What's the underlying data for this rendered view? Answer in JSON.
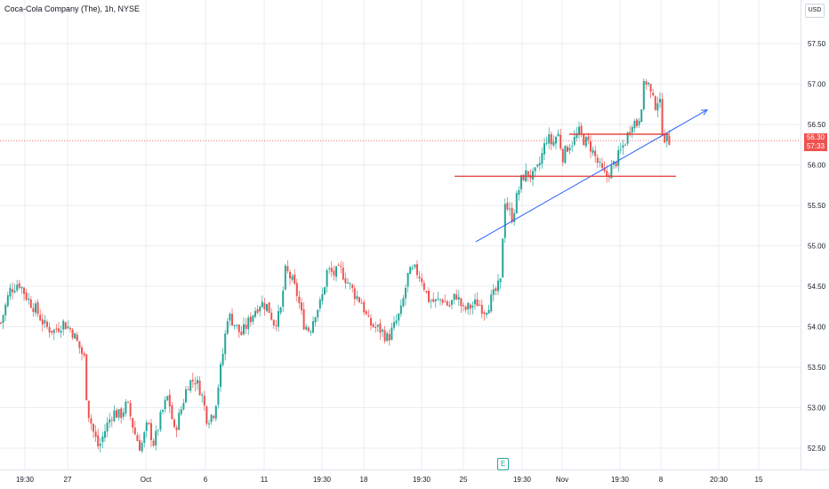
{
  "header": {
    "title": "Coca-Cola Company (The), 1h, NYSE",
    "currency_button": "USD"
  },
  "last_price": {
    "value": "56.30",
    "countdown": "57:33"
  },
  "earnings_marker": {
    "label": "E"
  },
  "colors": {
    "up": "#26a69a",
    "down": "#ef5350",
    "grid": "#e9eef3",
    "axis_text": "#131722",
    "trendline": "#2962ff",
    "level_line": "#e53935"
  },
  "chart_data": {
    "type": "candlestick",
    "title": "Coca-Cola Company (The), 1h, NYSE",
    "ylim": [
      52.3,
      57.85
    ],
    "y_ticks": [
      "57.50",
      "57.00",
      "56.50",
      "56.00",
      "55.50",
      "55.00",
      "54.50",
      "54.00",
      "53.50",
      "53.00",
      "52.50"
    ],
    "x_ticks": [
      "19:30",
      "27",
      "Oct",
      "6",
      "11",
      "19:30",
      "18",
      "19:30",
      "25",
      "19:30",
      "Nov",
      "19:30",
      "8",
      "20:30",
      "15"
    ],
    "grid": true,
    "close_path": [
      {
        "x": 0,
        "y": 54.05
      },
      {
        "x": 10,
        "y": 54.45
      },
      {
        "x": 20,
        "y": 54.55
      },
      {
        "x": 30,
        "y": 54.35
      },
      {
        "x": 40,
        "y": 54.2
      },
      {
        "x": 50,
        "y": 54.0
      },
      {
        "x": 60,
        "y": 53.95
      },
      {
        "x": 70,
        "y": 54.05
      },
      {
        "x": 80,
        "y": 53.95
      },
      {
        "x": 88,
        "y": 53.75
      },
      {
        "x": 94,
        "y": 53.6
      },
      {
        "x": 97,
        "y": 53.0
      },
      {
        "x": 104,
        "y": 52.7
      },
      {
        "x": 110,
        "y": 52.5
      },
      {
        "x": 118,
        "y": 52.75
      },
      {
        "x": 126,
        "y": 52.95
      },
      {
        "x": 134,
        "y": 52.9
      },
      {
        "x": 142,
        "y": 53.05
      },
      {
        "x": 150,
        "y": 52.7
      },
      {
        "x": 157,
        "y": 52.5
      },
      {
        "x": 165,
        "y": 52.8
      },
      {
        "x": 172,
        "y": 52.55
      },
      {
        "x": 180,
        "y": 52.9
      },
      {
        "x": 188,
        "y": 53.15
      },
      {
        "x": 195,
        "y": 52.7
      },
      {
        "x": 202,
        "y": 52.95
      },
      {
        "x": 210,
        "y": 53.3
      },
      {
        "x": 218,
        "y": 53.35
      },
      {
        "x": 225,
        "y": 53.2
      },
      {
        "x": 232,
        "y": 52.85
      },
      {
        "x": 240,
        "y": 52.95
      },
      {
        "x": 246,
        "y": 53.4
      },
      {
        "x": 250,
        "y": 53.7
      },
      {
        "x": 255,
        "y": 54.15
      },
      {
        "x": 262,
        "y": 54.05
      },
      {
        "x": 270,
        "y": 53.9
      },
      {
        "x": 278,
        "y": 54.05
      },
      {
        "x": 285,
        "y": 54.2
      },
      {
        "x": 292,
        "y": 54.3
      },
      {
        "x": 300,
        "y": 54.25
      },
      {
        "x": 307,
        "y": 54.05
      },
      {
        "x": 314,
        "y": 54.15
      },
      {
        "x": 320,
        "y": 54.7
      },
      {
        "x": 326,
        "y": 54.6
      },
      {
        "x": 333,
        "y": 54.4
      },
      {
        "x": 340,
        "y": 54.05
      },
      {
        "x": 347,
        "y": 53.95
      },
      {
        "x": 354,
        "y": 54.2
      },
      {
        "x": 360,
        "y": 54.3
      },
      {
        "x": 367,
        "y": 54.7
      },
      {
        "x": 374,
        "y": 54.65
      },
      {
        "x": 382,
        "y": 54.7
      },
      {
        "x": 390,
        "y": 54.55
      },
      {
        "x": 398,
        "y": 54.4
      },
      {
        "x": 406,
        "y": 54.3
      },
      {
        "x": 413,
        "y": 54.05
      },
      {
        "x": 420,
        "y": 54.0
      },
      {
        "x": 428,
        "y": 53.95
      },
      {
        "x": 435,
        "y": 53.85
      },
      {
        "x": 442,
        "y": 54.0
      },
      {
        "x": 450,
        "y": 54.2
      },
      {
        "x": 458,
        "y": 54.65
      },
      {
        "x": 466,
        "y": 54.7
      },
      {
        "x": 473,
        "y": 54.6
      },
      {
        "x": 480,
        "y": 54.35
      },
      {
        "x": 488,
        "y": 54.3
      },
      {
        "x": 496,
        "y": 54.35
      },
      {
        "x": 504,
        "y": 54.25
      },
      {
        "x": 512,
        "y": 54.4
      },
      {
        "x": 520,
        "y": 54.2
      },
      {
        "x": 528,
        "y": 54.25
      },
      {
        "x": 536,
        "y": 54.3
      },
      {
        "x": 544,
        "y": 54.2
      },
      {
        "x": 552,
        "y": 54.35
      },
      {
        "x": 562,
        "y": 54.55
      },
      {
        "x": 566,
        "y": 55.6
      },
      {
        "x": 570,
        "y": 55.45
      },
      {
        "x": 575,
        "y": 55.35
      },
      {
        "x": 580,
        "y": 55.6
      },
      {
        "x": 586,
        "y": 55.85
      },
      {
        "x": 592,
        "y": 55.9
      },
      {
        "x": 598,
        "y": 55.85
      },
      {
        "x": 604,
        "y": 55.95
      },
      {
        "x": 609,
        "y": 56.15
      },
      {
        "x": 614,
        "y": 56.35
      },
      {
        "x": 620,
        "y": 56.25
      },
      {
        "x": 626,
        "y": 56.4
      },
      {
        "x": 632,
        "y": 56.1
      },
      {
        "x": 638,
        "y": 56.25
      },
      {
        "x": 644,
        "y": 56.3
      },
      {
        "x": 650,
        "y": 56.4
      },
      {
        "x": 656,
        "y": 56.3
      },
      {
        "x": 662,
        "y": 56.25
      },
      {
        "x": 668,
        "y": 56.1
      },
      {
        "x": 674,
        "y": 55.95
      },
      {
        "x": 680,
        "y": 55.85
      },
      {
        "x": 686,
        "y": 55.95
      },
      {
        "x": 692,
        "y": 56.05
      },
      {
        "x": 698,
        "y": 56.2
      },
      {
        "x": 704,
        "y": 56.35
      },
      {
        "x": 710,
        "y": 56.55
      },
      {
        "x": 716,
        "y": 56.5
      },
      {
        "x": 720,
        "y": 56.75
      },
      {
        "x": 724,
        "y": 57.05
      },
      {
        "x": 728,
        "y": 57.0
      },
      {
        "x": 732,
        "y": 56.8
      },
      {
        "x": 736,
        "y": 56.75
      },
      {
        "x": 740,
        "y": 56.85
      },
      {
        "x": 744,
        "y": 56.4
      },
      {
        "x": 748,
        "y": 56.3
      },
      {
        "x": 752,
        "y": 56.3
      }
    ],
    "annotations": [
      {
        "type": "trendline",
        "from": {
          "x": 535,
          "y": 55.05
        },
        "to": {
          "x": 795,
          "y": 56.68
        },
        "arrow": true
      },
      {
        "type": "horizontal_segment",
        "x_from": 511,
        "x_to": 760,
        "price": 55.86
      },
      {
        "type": "horizontal_segment",
        "x_from": 640,
        "x_to": 752,
        "price": 56.38
      }
    ],
    "last_price_line": 56.3
  }
}
